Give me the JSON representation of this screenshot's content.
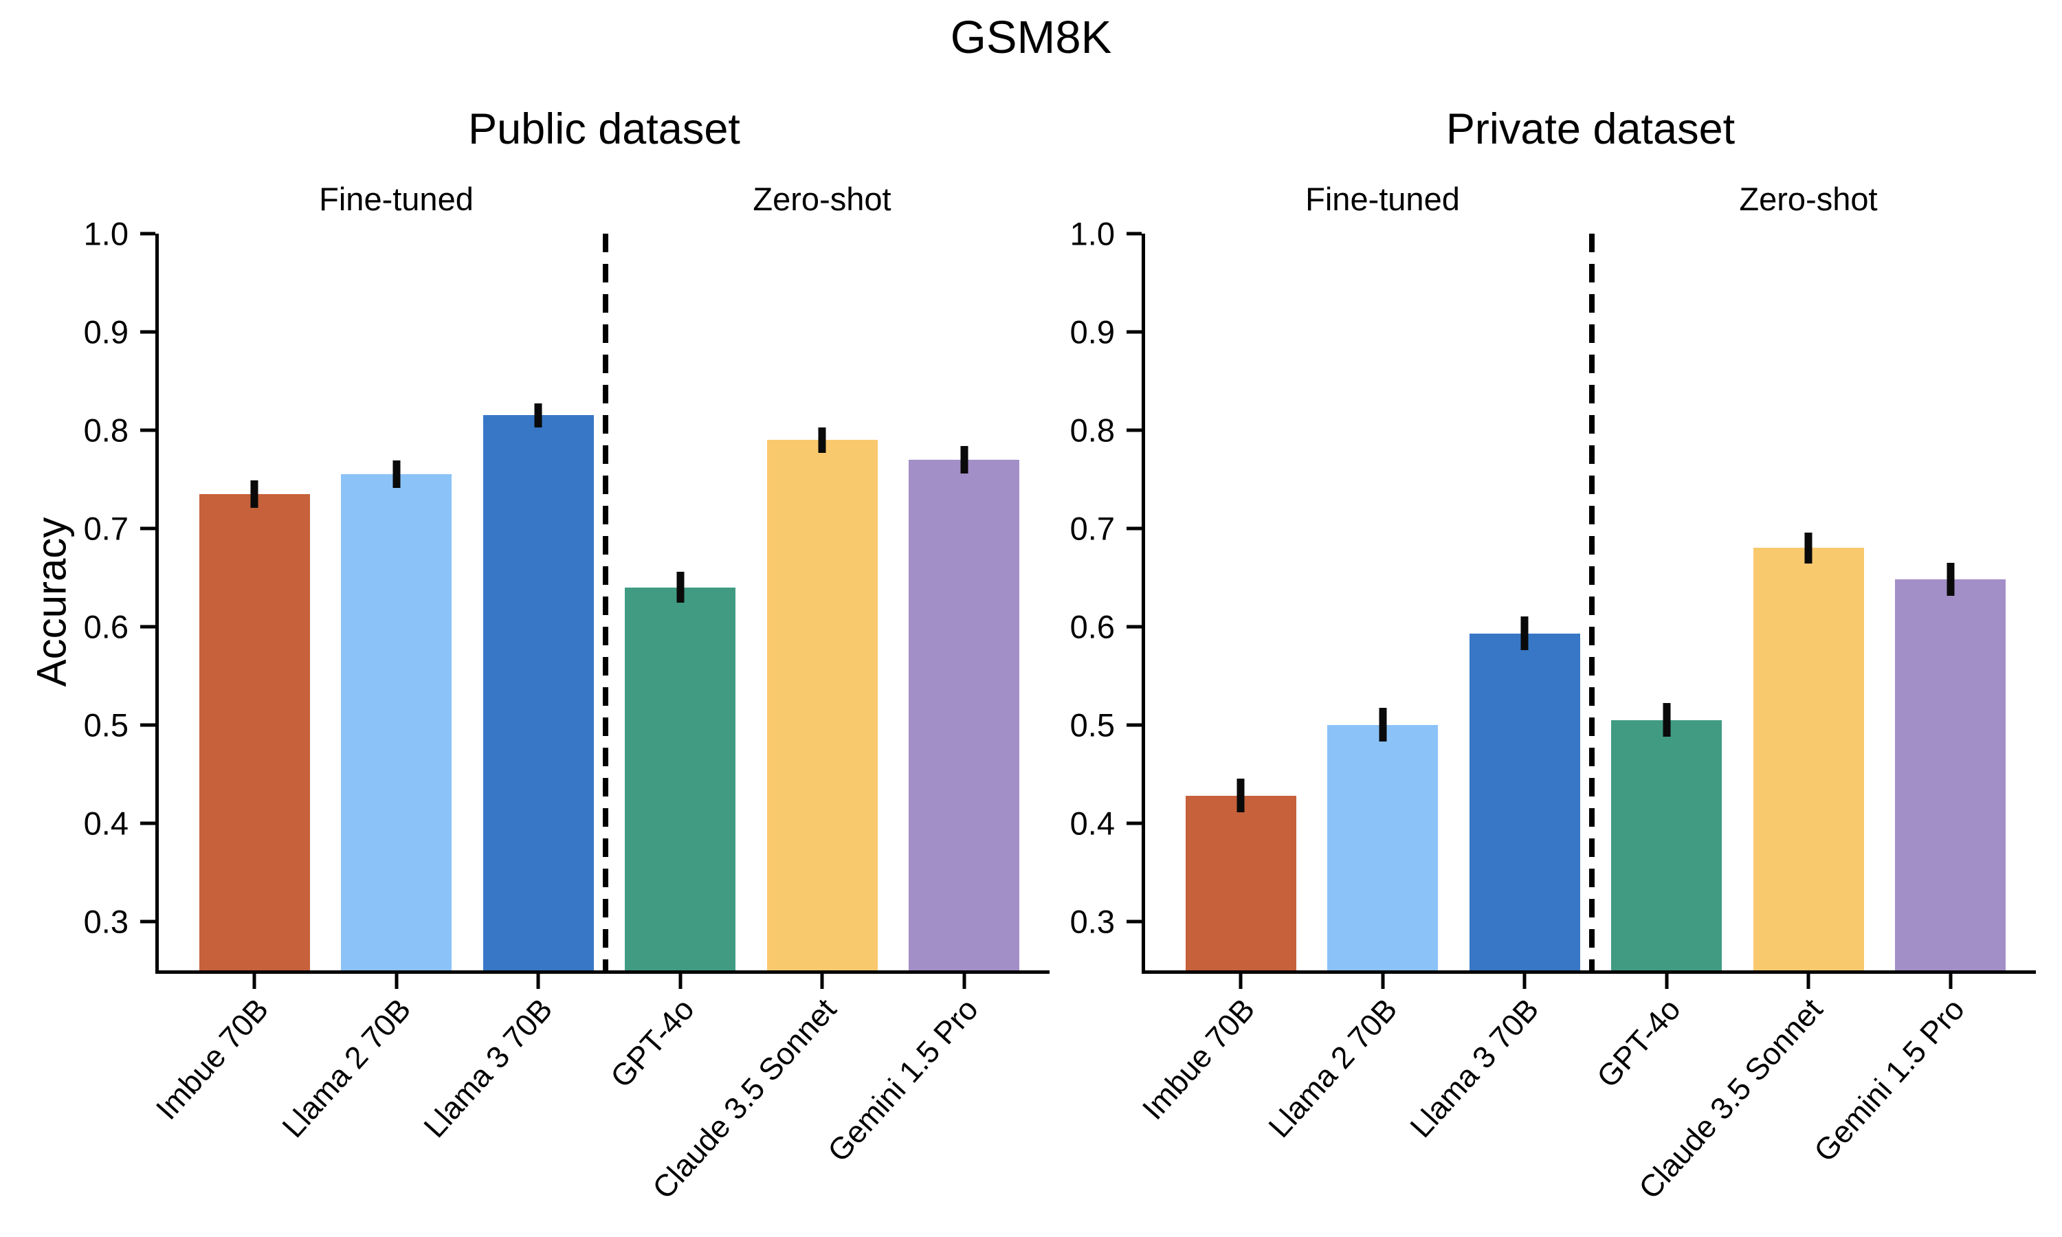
{
  "chart_data": {
    "type": "bar",
    "title": "GSM8K",
    "ylabel": "Accuracy",
    "ylim": [
      0.25,
      1.0
    ],
    "yticks": [
      "1.0",
      "0.9",
      "0.8",
      "0.7",
      "0.6",
      "0.5",
      "0.4",
      "0.3"
    ],
    "ytick_values": [
      1.0,
      0.9,
      0.8,
      0.7,
      0.6,
      0.5,
      0.4,
      0.3
    ],
    "categories": [
      "Imbue 70B",
      "Llama 2 70B",
      "Llama 3 70B",
      "GPT-4o",
      "Claude 3.5 Sonnet",
      "Gemini 1.5 Pro"
    ],
    "bar_colors": [
      "#C6613B",
      "#8BC3F8",
      "#3777C6",
      "#409B82",
      "#F9C96E",
      "#A38FC7"
    ],
    "group_labels": [
      "Fine-tuned",
      "Zero-shot"
    ],
    "group_label_bar_anchor": [
      1,
      4
    ],
    "separator_after_index": 2,
    "separator_style": "dashed",
    "error_bar_color": "#0a0a0a",
    "grid": false,
    "legend": null,
    "panels": [
      {
        "title": "Public dataset",
        "series": [
          {
            "name": "Accuracy",
            "values": [
              0.735,
              0.755,
              0.815,
              0.64,
              0.79,
              0.77
            ],
            "errors": [
              0.014,
              0.014,
              0.012,
              0.016,
              0.013,
              0.014
            ]
          }
        ]
      },
      {
        "title": "Private dataset",
        "series": [
          {
            "name": "Accuracy",
            "values": [
              0.428,
              0.5,
              0.593,
              0.505,
              0.68,
              0.648
            ],
            "errors": [
              0.017,
              0.017,
              0.017,
              0.017,
              0.016,
              0.017
            ]
          }
        ]
      }
    ]
  }
}
